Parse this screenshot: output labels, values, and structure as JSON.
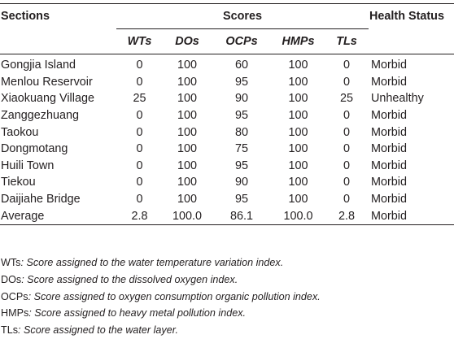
{
  "table": {
    "header": {
      "sections": "Sections",
      "scores": "Scores",
      "health_status": "Health Status",
      "sub": [
        "WTs",
        "DOs",
        "OCPs",
        "HMPs",
        "TLs"
      ]
    },
    "rows": [
      {
        "section": "Gongjia Island",
        "wts": "0",
        "dos": "100",
        "ocps": "60",
        "hmps": "100",
        "tls": "0",
        "status": "Morbid"
      },
      {
        "section": "Menlou Reservoir",
        "wts": "0",
        "dos": "100",
        "ocps": "95",
        "hmps": "100",
        "tls": "0",
        "status": "Morbid"
      },
      {
        "section": "Xiaokuang Village",
        "wts": "25",
        "dos": "100",
        "ocps": "90",
        "hmps": "100",
        "tls": "25",
        "status": "Unhealthy"
      },
      {
        "section": "Zanggezhuang",
        "wts": "0",
        "dos": "100",
        "ocps": "95",
        "hmps": "100",
        "tls": "0",
        "status": "Morbid"
      },
      {
        "section": "Taokou",
        "wts": "0",
        "dos": "100",
        "ocps": "80",
        "hmps": "100",
        "tls": "0",
        "status": "Morbid"
      },
      {
        "section": "Dongmotang",
        "wts": "0",
        "dos": "100",
        "ocps": "75",
        "hmps": "100",
        "tls": "0",
        "status": "Morbid"
      },
      {
        "section": "Huili Town",
        "wts": "0",
        "dos": "100",
        "ocps": "95",
        "hmps": "100",
        "tls": "0",
        "status": "Morbid"
      },
      {
        "section": "Tiekou",
        "wts": "0",
        "dos": "100",
        "ocps": "90",
        "hmps": "100",
        "tls": "0",
        "status": "Morbid"
      },
      {
        "section": "Daijiahe Bridge",
        "wts": "0",
        "dos": "100",
        "ocps": "95",
        "hmps": "100",
        "tls": "0",
        "status": "Morbid"
      },
      {
        "section": "Average",
        "wts": "2.8",
        "dos": "100.0",
        "ocps": "86.1",
        "hmps": "100.0",
        "tls": "2.8",
        "status": "Morbid"
      }
    ]
  },
  "footnotes": [
    {
      "abbr": "WTs",
      "desc": ": Score assigned to the water temperature variation index."
    },
    {
      "abbr": "DOs",
      "desc": ": Score assigned to the dissolved oxygen index."
    },
    {
      "abbr": "OCPs",
      "desc": ": Score assigned to oxygen consumption organic pollution index."
    },
    {
      "abbr": "HMPs",
      "desc": ": Score assigned to heavy metal pollution index."
    },
    {
      "abbr": "TLs",
      "desc": ": Score assigned to the water layer."
    }
  ]
}
